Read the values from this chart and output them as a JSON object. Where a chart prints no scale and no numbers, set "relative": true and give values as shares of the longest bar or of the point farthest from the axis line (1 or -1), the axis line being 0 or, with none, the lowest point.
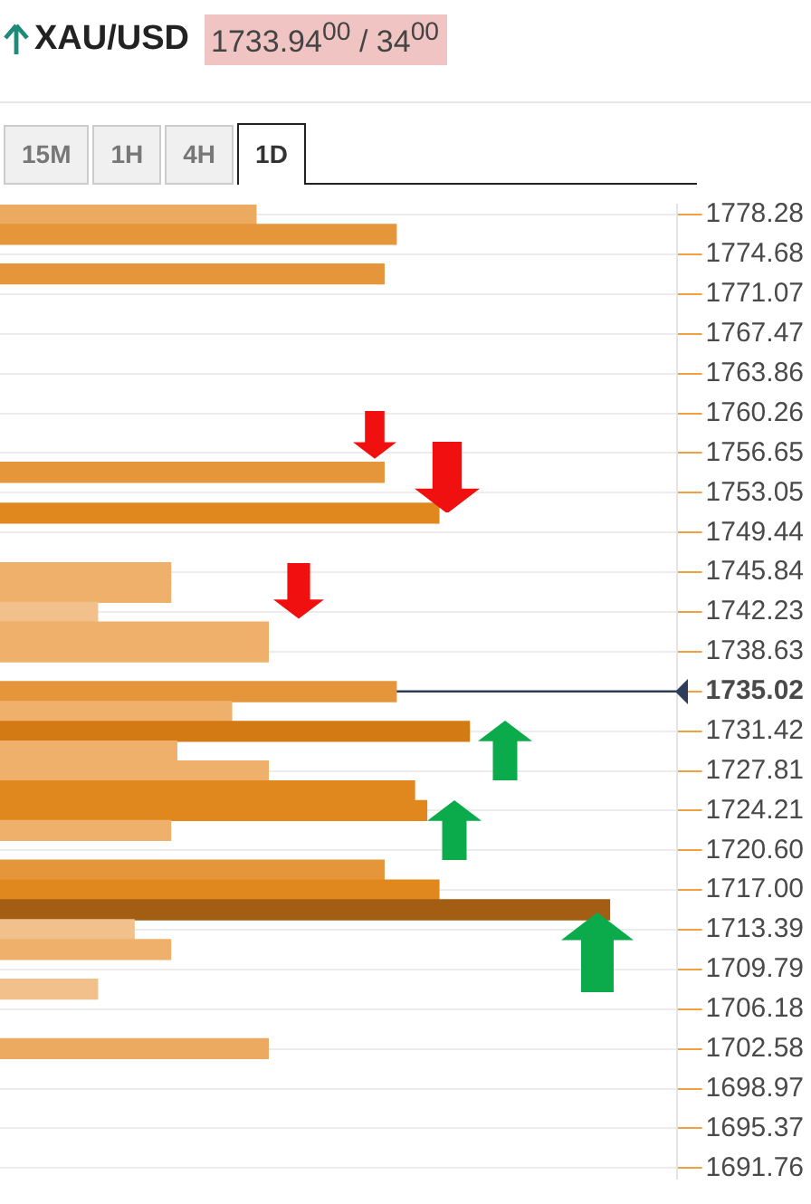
{
  "chart_data": {
    "type": "bar",
    "orientation": "horizontal",
    "relative": true,
    "title": "XAU/USD",
    "subtitle": "1733.94$^{00}$ / 34$^{00}$",
    "annotations": [
      "15M",
      "1H",
      "4H",
      "1D"
    ],
    "x": [
      1778.3,
      1776.5,
      1772.9,
      1754.9,
      1751.2,
      1745.8,
      1744.0,
      1742.2,
      1740.4,
      1738.6,
      1735.0,
      1733.2,
      1731.4,
      1729.6,
      1727.8,
      1726.0,
      1724.2,
      1722.4,
      1718.8,
      1717.0,
      1715.2,
      1713.4,
      1711.6,
      1708.0,
      1702.6
    ],
    "values": [
      0.42,
      0.65,
      0.63,
      0.63,
      0.72,
      0.28,
      0.28,
      0.16,
      0.44,
      0.44,
      0.65,
      0.38,
      0.77,
      0.29,
      0.44,
      0.68,
      0.7,
      0.28,
      0.63,
      0.72,
      1,
      0.22,
      0.28,
      0.16,
      0.44
    ],
    "colors": [
      "#ebaa60",
      "#e6963a",
      "#e6963a",
      "#e6963a",
      "#e0871e",
      "#eeb06a",
      "#eeb06a",
      "#f2c08a",
      "#eeb06a",
      "#eeb06a",
      "#e6963a",
      "#eeb06a",
      "#d47a14",
      "#eeb06a",
      "#eeb06a",
      "#e0871e",
      "#e0871e",
      "#eeb06a",
      "#e6963a",
      "#e0871e",
      "#a35e14",
      "#f2c08a",
      "#eeb06a",
      "#f2c08a",
      "#ebaa60"
    ],
    "ylim": [
      1690.8,
      1779.2
    ],
    "yticks": [
      1778.28,
      1774.68,
      1771.07,
      1767.47,
      1763.86,
      1760.26,
      1756.65,
      1753.05,
      1749.44,
      1745.84,
      1742.23,
      1738.63,
      1735.02,
      1731.42,
      1727.81,
      1724.21,
      {
        "value": 1720.6,
        "label": "1720.60"
      },
      {
        "value": 1717,
        "label": "1717.00"
      },
      1713.39,
      1709.79,
      1706.18,
      1702.58,
      1698.97,
      1695.37,
      1691.76
    ],
    "ref_lines": [
      {
        "axis": "y",
        "value": 1735.02,
        "color": "#2c3e5a"
      }
    ],
    "grid": "y",
    "legend": false
  }
}
